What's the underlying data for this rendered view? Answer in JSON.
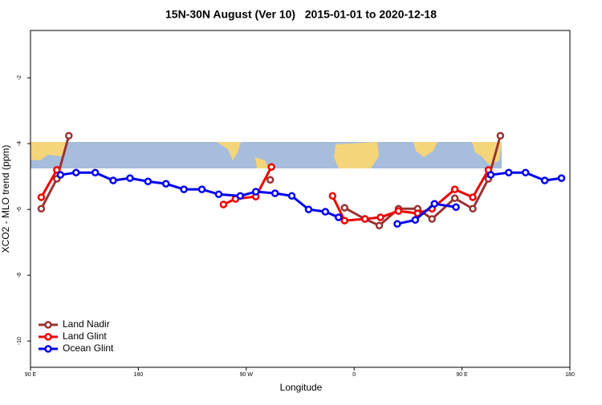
{
  "chart_data": {
    "type": "line",
    "title": "15N-30N August (Ver 10)   2015-01-01 to 2020-12-18",
    "x_label": "Longitude",
    "y_label": "XCO2 - MLO trend (ppm)",
    "xlim": [
      90,
      540
    ],
    "xticks": [
      {
        "value": 90,
        "label": "90 E"
      },
      180,
      {
        "value": 270,
        "label": "90 W"
      },
      {
        "value": 360,
        "label": "0"
      },
      {
        "value": 450,
        "label": "90 E"
      },
      {
        "value": 540,
        "label": "180"
      }
    ],
    "ylim": [
      -10.8,
      -0.56
    ],
    "yticks": [
      -10,
      -8,
      -6,
      -4,
      -2
    ],
    "legend": "bottom-left",
    "series": [
      {
        "name": "Land Nadir",
        "color": "#993333",
        "x": [
          99,
          112,
          122,
          null,
          290,
          null,
          352,
          369,
          381,
          397,
          413,
          425,
          444,
          459,
          472,
          482
        ],
        "values": [
          -5.98,
          -5.07,
          -3.76,
          null,
          -5.1,
          null,
          -5.95,
          -6.29,
          -6.49,
          -5.98,
          -5.98,
          -6.29,
          -5.66,
          -5.98,
          -5.07,
          -3.76
        ]
      },
      {
        "name": "Land Glint",
        "color": "#ee0000",
        "x": [
          99,
          112,
          null,
          251,
          261,
          278,
          291,
          null,
          342,
          352,
          369,
          382,
          397,
          413,
          425,
          444,
          459,
          472
        ],
        "values": [
          -5.63,
          -4.8,
          null,
          -5.85,
          -5.68,
          -5.61,
          -4.71,
          null,
          -5.59,
          -6.34,
          -6.29,
          -6.24,
          -6.05,
          -6.12,
          -5.98,
          -5.39,
          -5.63,
          -4.8
        ]
      },
      {
        "name": "Ocean Glint",
        "color": "#0000ee",
        "x": [
          115,
          128,
          144,
          159,
          173,
          188,
          203,
          218,
          233,
          247,
          265,
          278,
          294,
          308,
          322,
          336,
          347,
          null,
          396,
          411,
          427,
          445,
          null,
          474,
          489,
          503,
          519,
          533
        ],
        "values": [
          -4.95,
          -4.88,
          -4.88,
          -5.12,
          -5.05,
          -5.15,
          -5.22,
          -5.39,
          -5.39,
          -5.54,
          -5.59,
          -5.46,
          -5.51,
          -5.59,
          -6.0,
          -6.07,
          -6.24,
          null,
          -6.44,
          -6.32,
          -5.83,
          -5.93,
          null,
          -4.95,
          -4.88,
          -4.88,
          -5.12,
          -5.05
        ]
      }
    ]
  }
}
